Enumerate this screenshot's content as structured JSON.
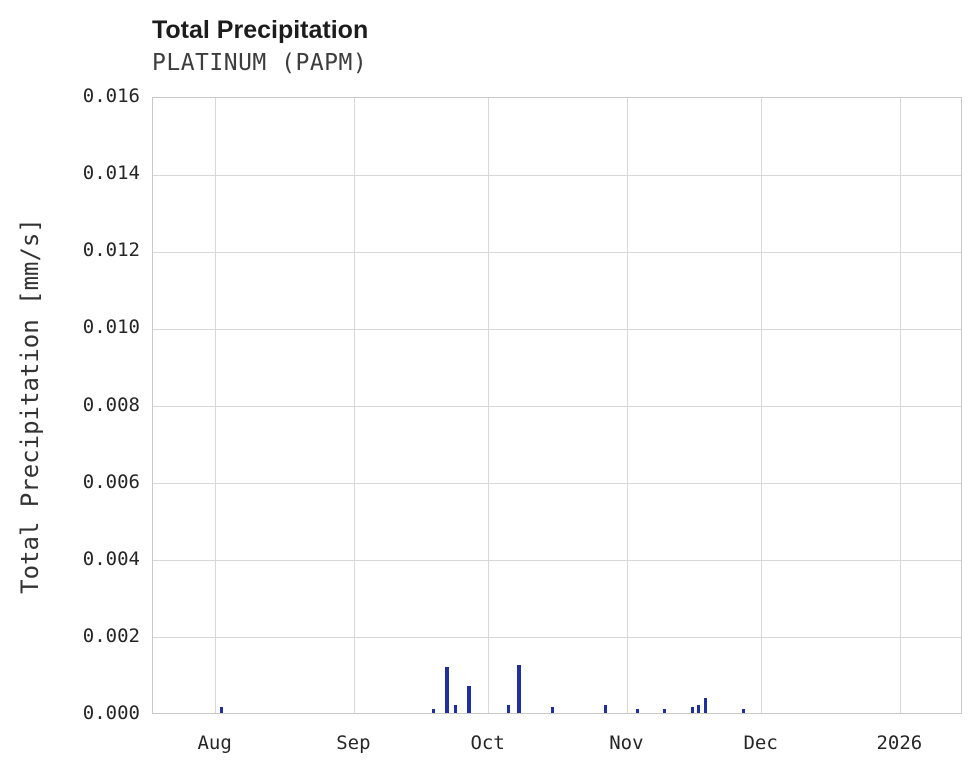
{
  "header": {
    "title": "Total Precipitation",
    "subtitle": "PLATINUM (PAPM)"
  },
  "chart_data": {
    "type": "bar",
    "title": "Total Precipitation",
    "subtitle": "PLATINUM (PAPM)",
    "xlabel": "",
    "ylabel": "Total Precipitation [mm/s]",
    "ylim": [
      0,
      0.016
    ],
    "ytick_step": 0.002,
    "ytick_labels": [
      "0.000",
      "0.002",
      "0.004",
      "0.006",
      "0.008",
      "0.010",
      "0.012",
      "0.014",
      "0.016"
    ],
    "grid": true,
    "legend": "none",
    "bar_color": "#1f2f9b",
    "x_domain_days": [
      0,
      181
    ],
    "xticks": [
      {
        "label": "Aug",
        "day": 14
      },
      {
        "label": "Sep",
        "day": 45
      },
      {
        "label": "Oct",
        "day": 75
      },
      {
        "label": "Nov",
        "day": 106
      },
      {
        "label": "Dec",
        "day": 136
      },
      {
        "label": "2026",
        "day": 167
      }
    ],
    "bars": [
      {
        "day": 15.4,
        "value": 0.00015
      },
      {
        "day": 62.6,
        "value": 0.0001
      },
      {
        "day": 65.7,
        "value": 0.0012
      },
      {
        "day": 67.5,
        "value": 0.0002
      },
      {
        "day": 70.6,
        "value": 0.0007
      },
      {
        "day": 79.5,
        "value": 0.0002
      },
      {
        "day": 81.8,
        "value": 0.00125
      },
      {
        "day": 89.2,
        "value": 0.00015
      },
      {
        "day": 101.2,
        "value": 0.0002
      },
      {
        "day": 108.3,
        "value": 0.0001
      },
      {
        "day": 114.4,
        "value": 0.0001
      },
      {
        "day": 120.6,
        "value": 0.00015
      },
      {
        "day": 122.0,
        "value": 0.0002
      },
      {
        "day": 123.5,
        "value": 0.0004
      },
      {
        "day": 131.9,
        "value": 0.0001
      }
    ]
  }
}
